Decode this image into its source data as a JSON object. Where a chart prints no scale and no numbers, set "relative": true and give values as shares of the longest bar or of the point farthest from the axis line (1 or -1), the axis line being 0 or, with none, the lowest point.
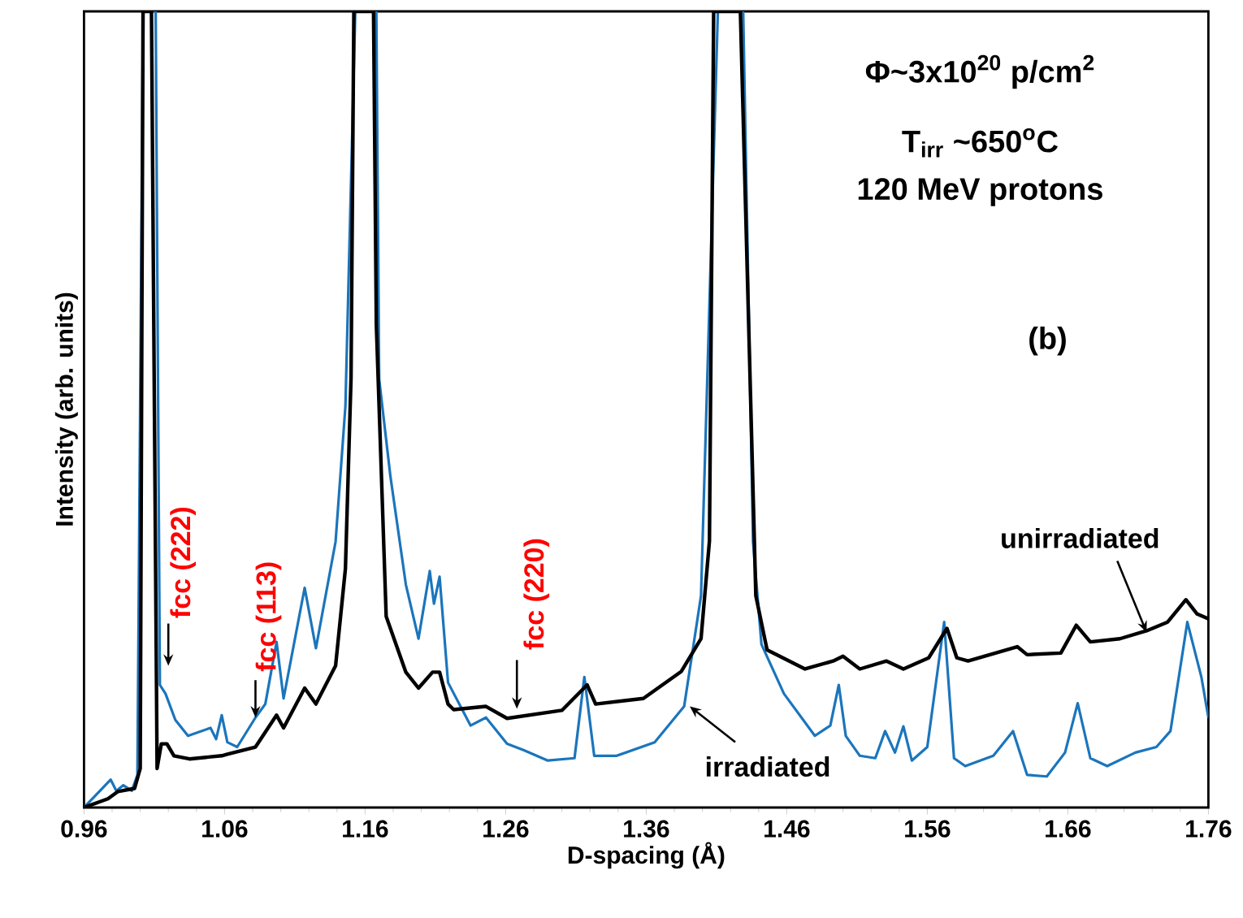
{
  "chart_data": {
    "type": "line",
    "relative": true,
    "xlabel": "D-spacing (Å)",
    "ylabel": "Intensity (arb. units)",
    "xlim": [
      0.96,
      1.76
    ],
    "xticks": [
      0.96,
      1.06,
      1.16,
      1.26,
      1.36,
      1.46,
      1.56,
      1.66,
      1.76
    ],
    "series": [
      {
        "color": "#1b75bc",
        "x": [
          0.96,
          0.979,
          0.983,
          0.988,
          0.994,
          0.998,
          1.002,
          1.011,
          1.014,
          1.018,
          1.025,
          1.034,
          1.05,
          1.054,
          1.058,
          1.062,
          1.069,
          1.082,
          1.089,
          1.097,
          1.102,
          1.117,
          1.125,
          1.139,
          1.146,
          1.153,
          1.168,
          1.17,
          1.178,
          1.189,
          1.198,
          1.206,
          1.209,
          1.213,
          1.219,
          1.235,
          1.246,
          1.261,
          1.273,
          1.29,
          1.309,
          1.316,
          1.323,
          1.339,
          1.366,
          1.387,
          1.399,
          1.411,
          1.429,
          1.436,
          1.442,
          1.458,
          1.48,
          1.491,
          1.497,
          1.502,
          1.512,
          1.523,
          1.53,
          1.537,
          1.543,
          1.549,
          1.56,
          1.572,
          1.579,
          1.587,
          1.607,
          1.621,
          1.631,
          1.645,
          1.658,
          1.667,
          1.676,
          1.688,
          1.708,
          1.723,
          1.733,
          1.745,
          1.755,
          1.76
        ],
        "values": [
          0,
          0.035,
          0.021,
          0.028,
          0.021,
          0.041,
          1,
          1,
          0.154,
          0.143,
          0.11,
          0.09,
          0.1,
          0.086,
          0.116,
          0.082,
          0.076,
          0.113,
          0.13,
          0.208,
          0.137,
          0.276,
          0.2,
          0.334,
          0.504,
          1,
          1,
          0.538,
          0.416,
          0.28,
          0.212,
          0.297,
          0.256,
          0.29,
          0.157,
          0.103,
          0.113,
          0.08,
          0.072,
          0.059,
          0.062,
          0.164,
          0.065,
          0.065,
          0.082,
          0.127,
          0.266,
          1,
          1,
          0.334,
          0.205,
          0.143,
          0.09,
          0.103,
          0.154,
          0.09,
          0.065,
          0.062,
          0.096,
          0.069,
          0.102,
          0.059,
          0.076,
          0.233,
          0.062,
          0.052,
          0.065,
          0.096,
          0.041,
          0.039,
          0.069,
          0.131,
          0.062,
          0.052,
          0.069,
          0.076,
          0.096,
          0.233,
          0.164,
          0.113
        ]
      },
      {
        "color": "#000000",
        "x": [
          0.96,
          0.977,
          0.984,
          0.996,
          1.0,
          1.002,
          1.008,
          1.012,
          1.015,
          1.019,
          1.024,
          1.035,
          1.058,
          1.062,
          1.082,
          1.097,
          1.102,
          1.117,
          1.125,
          1.139,
          1.146,
          1.15,
          1.152,
          1.166,
          1.168,
          1.175,
          1.189,
          1.198,
          1.208,
          1.213,
          1.219,
          1.223,
          1.246,
          1.261,
          1.3,
          1.318,
          1.324,
          1.358,
          1.385,
          1.399,
          1.405,
          1.408,
          1.427,
          1.438,
          1.446,
          1.473,
          1.493,
          1.5,
          1.512,
          1.531,
          1.543,
          1.561,
          1.574,
          1.581,
          1.589,
          1.624,
          1.631,
          1.655,
          1.666,
          1.676,
          1.697,
          1.716,
          1.731,
          1.744,
          1.752,
          1.76
        ],
        "values": [
          0,
          0.011,
          0.02,
          0.024,
          0.049,
          1,
          1,
          0.049,
          0.08,
          0.08,
          0.065,
          0.061,
          0.065,
          0.067,
          0.076,
          0.116,
          0.1,
          0.15,
          0.13,
          0.178,
          0.3,
          0.54,
          1,
          1,
          0.606,
          0.24,
          0.17,
          0.15,
          0.17,
          0.17,
          0.13,
          0.123,
          0.127,
          0.112,
          0.122,
          0.154,
          0.13,
          0.137,
          0.171,
          0.212,
          0.335,
          1,
          1,
          0.266,
          0.198,
          0.174,
          0.184,
          0.19,
          0.174,
          0.184,
          0.174,
          0.188,
          0.225,
          0.188,
          0.184,
          0.202,
          0.192,
          0.194,
          0.229,
          0.208,
          0.212,
          0.222,
          0.233,
          0.261,
          0.243,
          0.237
        ]
      }
    ],
    "annotations": [
      "Φ~3x10$^{20}$ p/cm$^{2}$",
      "T$_{irr}$ ~650$^{o}$C",
      "120 MeV protons",
      "(b)",
      {
        "text": "fcc (222)",
        "x": 1.02,
        "y": 0.178
      },
      {
        "text": "fcc (113)",
        "x": 1.082,
        "y": 0.113
      },
      {
        "text": "fcc (220)",
        "x": 1.268,
        "y": 0.124
      },
      {
        "text": "irradiated",
        "x": 1.391,
        "y": 0.127
      },
      {
        "text": "unirradiated",
        "x": 1.716,
        "y": 0.22
      }
    ]
  }
}
